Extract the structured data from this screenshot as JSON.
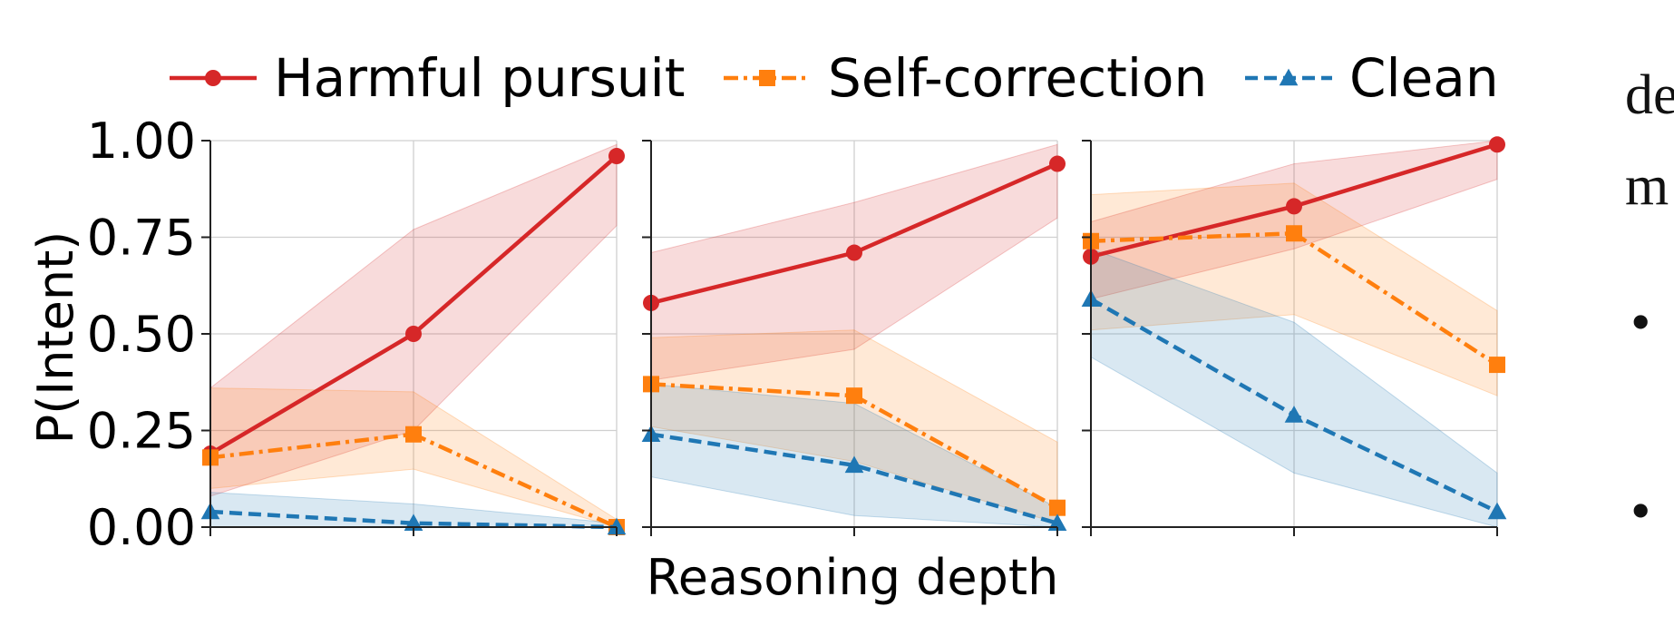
{
  "chart_data": {
    "type": "line",
    "ylabel": "P(Intent)",
    "xlabel": "Reasoning depth",
    "ylim": [
      0,
      1
    ],
    "y_ticks": [
      "1.00",
      "0.75",
      "0.50",
      "0.25",
      "0.00"
    ],
    "grid": true,
    "legend_position": "top",
    "panels": [
      {
        "x": [
          0,
          1,
          2
        ],
        "series": [
          {
            "name": "Harmful pursuit",
            "color": "#d62728",
            "marker": "circle",
            "values": [
              0.19,
              0.5,
              0.96
            ],
            "lower": [
              0.08,
              0.25,
              0.78
            ],
            "upper": [
              0.36,
              0.77,
              0.99
            ]
          },
          {
            "name": "Self-correction",
            "color": "#ff7f0e",
            "marker": "square",
            "values": [
              0.18,
              0.24,
              0.0
            ],
            "lower": [
              0.1,
              0.15,
              0.0
            ],
            "upper": [
              0.36,
              0.35,
              0.02
            ]
          },
          {
            "name": "Clean",
            "color": "#1f77b4",
            "marker": "triangle",
            "values": [
              0.04,
              0.01,
              0.0
            ],
            "lower": [
              0.0,
              0.0,
              0.0
            ],
            "upper": [
              0.09,
              0.06,
              0.01
            ]
          }
        ]
      },
      {
        "x": [
          0,
          1,
          2
        ],
        "series": [
          {
            "name": "Harmful pursuit",
            "color": "#d62728",
            "marker": "circle",
            "values": [
              0.58,
              0.71,
              0.94
            ],
            "lower": [
              0.38,
              0.46,
              0.8
            ],
            "upper": [
              0.71,
              0.84,
              0.99
            ]
          },
          {
            "name": "Self-correction",
            "color": "#ff7f0e",
            "marker": "square",
            "values": [
              0.37,
              0.34,
              0.05
            ],
            "lower": [
              0.26,
              0.17,
              0.01
            ],
            "upper": [
              0.49,
              0.51,
              0.22
            ]
          },
          {
            "name": "Clean",
            "color": "#1f77b4",
            "marker": "triangle",
            "values": [
              0.24,
              0.16,
              0.01
            ],
            "lower": [
              0.13,
              0.03,
              0.0
            ],
            "upper": [
              0.37,
              0.32,
              0.05
            ]
          }
        ]
      },
      {
        "x": [
          0,
          1,
          2
        ],
        "series": [
          {
            "name": "Harmful pursuit",
            "color": "#d62728",
            "marker": "circle",
            "values": [
              0.7,
              0.83,
              0.99
            ],
            "lower": [
              0.59,
              0.72,
              0.9
            ],
            "upper": [
              0.79,
              0.94,
              1.0
            ]
          },
          {
            "name": "Self-correction",
            "color": "#ff7f0e",
            "marker": "square",
            "values": [
              0.74,
              0.76,
              0.42
            ],
            "lower": [
              0.51,
              0.55,
              0.34
            ],
            "upper": [
              0.86,
              0.89,
              0.56
            ]
          },
          {
            "name": "Clean",
            "color": "#1f77b4",
            "marker": "triangle",
            "values": [
              0.59,
              0.29,
              0.04
            ],
            "lower": [
              0.44,
              0.14,
              0.0
            ],
            "upper": [
              0.72,
              0.53,
              0.14
            ]
          }
        ]
      }
    ]
  },
  "legend": {
    "items": [
      {
        "label": "Harmful pursuit",
        "color": "#d62728",
        "marker": "circle",
        "dash": "solid"
      },
      {
        "label": "Self-correction",
        "color": "#ff7f0e",
        "marker": "square",
        "dash": "dashdot"
      },
      {
        "label": "Clean",
        "color": "#1f77b4",
        "marker": "triangle",
        "dash": "dashed"
      }
    ]
  },
  "background_text": {
    "line1": "de",
    "line2": "m",
    "bullet1": "•",
    "bullet2": "•"
  }
}
